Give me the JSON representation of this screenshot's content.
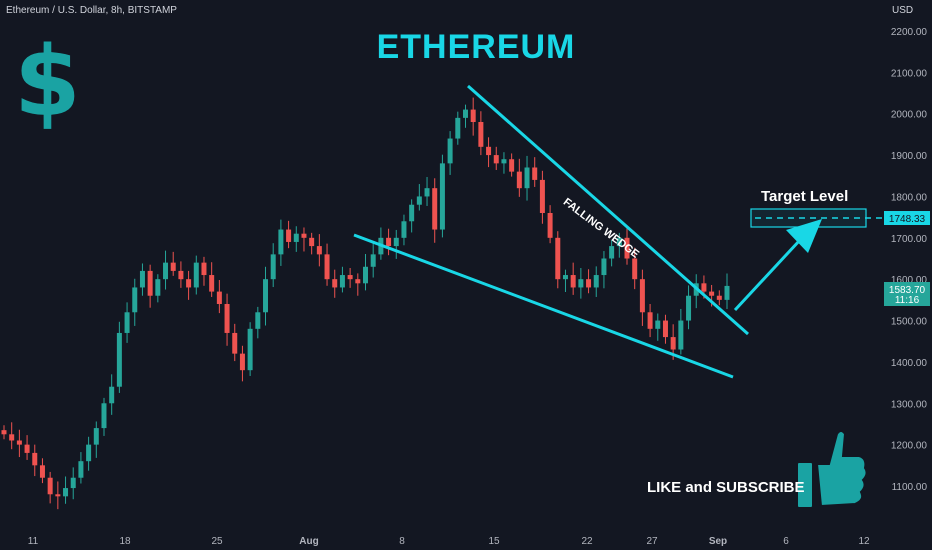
{
  "header": {
    "symbol_info": "Ethereum / U.S. Dollar, 8h, BITSTAMP",
    "currency": "USD"
  },
  "annotations": {
    "title": "ETHEREUM",
    "dollar_sign": "$",
    "pattern_label": "FALLING WEDGE",
    "target_label": "Target Level",
    "cta": "LIKE and SUBSCRIBE"
  },
  "colors": {
    "background": "#131722",
    "up": "#26a69a",
    "down": "#ef5350",
    "trendline": "#19d7e6",
    "title": "#19d7e6",
    "dollar": "#1aa3a3",
    "price_tag": "#26a69a"
  },
  "icons": [
    "dollar-icon",
    "thumbs-up-icon",
    "arrow-up-right-icon"
  ],
  "chart_data": {
    "type": "candlestick",
    "ylim": [
      1025,
      2250
    ],
    "y_ticks": [
      "2200.00",
      "2100.00",
      "2000.00",
      "1900.00",
      "1800.00",
      "1700.00",
      "1600.00",
      "1500.00",
      "1400.00",
      "1300.00",
      "1200.00",
      "1100.00"
    ],
    "x_ticks": [
      "11",
      "18",
      "25",
      "Aug",
      "8",
      "15",
      "22",
      "27",
      "Sep",
      "6",
      "12"
    ],
    "target_level": "1748.33",
    "current_price": "1583.70",
    "countdown": "11:16",
    "closes": [
      1225,
      1210,
      1200,
      1180,
      1150,
      1120,
      1080,
      1075,
      1095,
      1120,
      1160,
      1200,
      1240,
      1300,
      1340,
      1470,
      1520,
      1580,
      1620,
      1560,
      1600,
      1640,
      1620,
      1600,
      1580,
      1640,
      1610,
      1570,
      1540,
      1470,
      1420,
      1380,
      1480,
      1520,
      1600,
      1660,
      1720,
      1690,
      1710,
      1700,
      1680,
      1660,
      1600,
      1580,
      1610,
      1600,
      1590,
      1630,
      1660,
      1700,
      1680,
      1700,
      1740,
      1780,
      1800,
      1820,
      1720,
      1880,
      1940,
      1990,
      2010,
      1980,
      1920,
      1900,
      1880,
      1890,
      1860,
      1820,
      1870,
      1840,
      1760,
      1700,
      1600,
      1610,
      1580,
      1600,
      1580,
      1610,
      1650,
      1680,
      1700,
      1650,
      1600,
      1520,
      1480,
      1500,
      1460,
      1430,
      1500,
      1560,
      1590,
      1570,
      1560,
      1550,
      1583.7
    ]
  }
}
